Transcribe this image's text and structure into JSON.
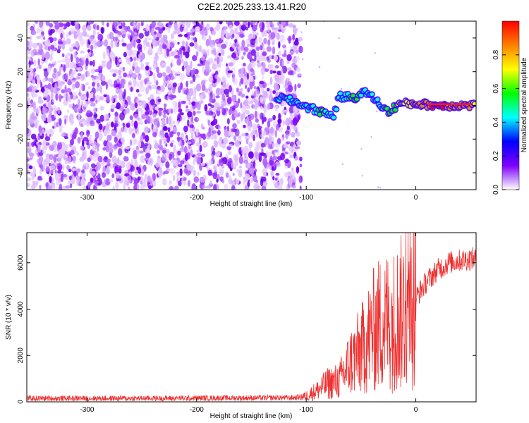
{
  "title": "C2E2.2025.233.13.41.R20",
  "chart_data": [
    {
      "type": "heatmap",
      "xlabel": "Height of straight line (km)",
      "ylabel": "Frequency (Hz)",
      "xlim": [
        -355,
        55
      ],
      "ylim": [
        -50,
        50
      ],
      "xticks": [
        -300,
        -200,
        -100,
        0
      ],
      "yticks": [
        -40,
        -20,
        0,
        20,
        40
      ],
      "colorbar": {
        "label": "Normalized spectral amplitude",
        "range": [
          0,
          1
        ],
        "ticks": [
          0.0,
          0.2,
          0.4,
          0.6,
          0.8
        ],
        "tick_labels": [
          "0.0",
          "0.2",
          "0.4",
          "0.6",
          "0.8"
        ],
        "colors": [
          "#ffffff",
          "#7f00ff",
          "#0000ff",
          "#00ffff",
          "#00ff00",
          "#ffff00",
          "#ff8000",
          "#ff0000"
        ]
      },
      "signal_track": [
        {
          "x": -127,
          "f": 5,
          "amp": 0.3
        },
        {
          "x": -110,
          "f": 2,
          "amp": 0.35
        },
        {
          "x": -95,
          "f": -2,
          "amp": 0.4
        },
        {
          "x": -85,
          "f": -4,
          "amp": 0.45
        },
        {
          "x": -75,
          "f": -6,
          "amp": 0.35
        },
        {
          "x": -70,
          "f": 5,
          "amp": 0.4
        },
        {
          "x": -55,
          "f": 5,
          "amp": 0.45
        },
        {
          "x": -45,
          "f": 8,
          "amp": 0.4
        },
        {
          "x": -35,
          "f": 2,
          "amp": 0.4
        },
        {
          "x": -25,
          "f": -4,
          "amp": 0.45
        },
        {
          "x": -15,
          "f": 1,
          "amp": 0.6
        },
        {
          "x": 0,
          "f": 1,
          "amp": 0.75
        },
        {
          "x": 20,
          "f": 0,
          "amp": 0.9
        },
        {
          "x": 55,
          "f": 0,
          "amp": 0.7
        }
      ]
    },
    {
      "type": "line",
      "xlabel": "Height of straight line (km)",
      "ylabel": "SNR (10 * v/v)",
      "xlim": [
        -355,
        55
      ],
      "ylim": [
        0,
        7300
      ],
      "xticks": [
        -300,
        -200,
        -100,
        0
      ],
      "yticks": [
        0,
        2000,
        4000,
        6000
      ],
      "series": [
        {
          "name": "SNR",
          "color": "#ee3030",
          "x": [
            -355,
            -300,
            -250,
            -200,
            -150,
            -110,
            -100,
            -90,
            -80,
            -70,
            -60,
            -50,
            -40,
            -30,
            -20,
            -10,
            0,
            10,
            20,
            30,
            40,
            55
          ],
          "y": [
            150,
            150,
            150,
            160,
            170,
            180,
            250,
            500,
            800,
            900,
            1700,
            2200,
            3000,
            3500,
            3500,
            4000,
            4500,
            5200,
            5700,
            6000,
            6100,
            6200
          ]
        }
      ]
    }
  ]
}
